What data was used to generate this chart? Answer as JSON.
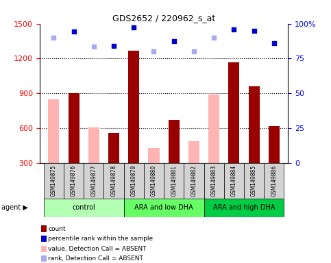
{
  "title": "GDS2652 / 220962_s_at",
  "samples": [
    "GSM149875",
    "GSM149876",
    "GSM149877",
    "GSM149878",
    "GSM149879",
    "GSM149880",
    "GSM149881",
    "GSM149882",
    "GSM149883",
    "GSM149884",
    "GSM149885",
    "GSM149886"
  ],
  "count_present": [
    null,
    900,
    null,
    560,
    1270,
    null,
    670,
    null,
    null,
    1170,
    960,
    620
  ],
  "count_absent": [
    850,
    null,
    610,
    null,
    null,
    430,
    null,
    490,
    890,
    null,
    null,
    null
  ],
  "rank_present": [
    null,
    1430,
    null,
    1310,
    1470,
    null,
    1350,
    null,
    null,
    1450,
    1440,
    1330
  ],
  "rank_absent": [
    1380,
    null,
    1300,
    null,
    null,
    1260,
    null,
    1260,
    1380,
    null,
    null,
    null
  ],
  "groups": [
    {
      "label": "control",
      "start": 0,
      "end": 4,
      "color": "#b3ffb3"
    },
    {
      "label": "ARA and low DHA",
      "start": 4,
      "end": 8,
      "color": "#66ff66"
    },
    {
      "label": "ARA and high DHA",
      "start": 8,
      "end": 12,
      "color": "#00cc44"
    }
  ],
  "ylim_left": [
    300,
    1500
  ],
  "ylim_right": [
    0,
    100
  ],
  "yticks_left": [
    300,
    600,
    900,
    1200,
    1500
  ],
  "yticks_right": [
    0,
    25,
    50,
    75,
    100
  ],
  "ytick_right_labels": [
    "0",
    "25",
    "50",
    "75",
    "100%"
  ],
  "color_count_present": "#990000",
  "color_count_absent": "#ffb3b3",
  "color_rank_present": "#0000cc",
  "color_rank_absent": "#aaaaee",
  "bar_width": 0.55,
  "gridline_y": [
    600,
    900,
    1200
  ],
  "agent_label": "agent ▶",
  "legend": [
    {
      "color": "#990000",
      "label": "count"
    },
    {
      "color": "#0000cc",
      "label": "percentile rank within the sample"
    },
    {
      "color": "#ffb3b3",
      "label": "value, Detection Call = ABSENT"
    },
    {
      "color": "#aaaaee",
      "label": "rank, Detection Call = ABSENT"
    }
  ],
  "xtick_bg": "#d3d3d3"
}
